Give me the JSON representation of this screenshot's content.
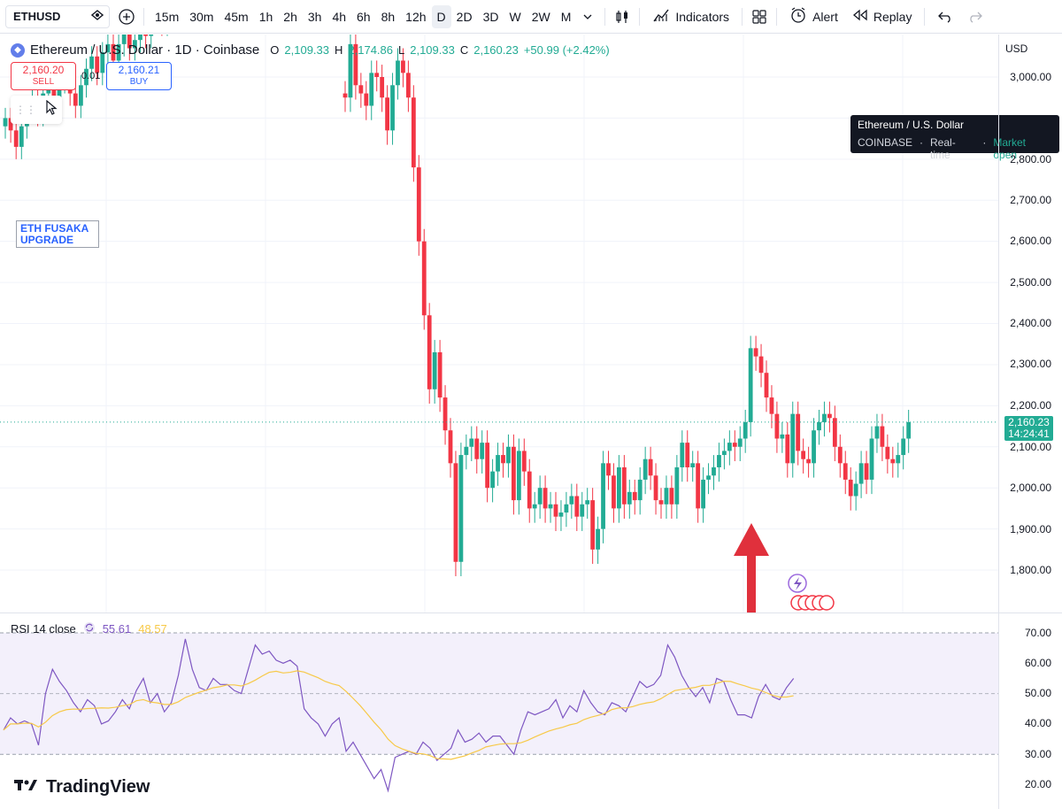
{
  "toolbar": {
    "symbol": "ETHUSD",
    "timeframes": [
      "15m",
      "30m",
      "45m",
      "1h",
      "2h",
      "3h",
      "4h",
      "6h",
      "8h",
      "12h",
      "D",
      "2D",
      "3D",
      "W",
      "2W",
      "M"
    ],
    "active_timeframe": "D",
    "indicators_label": "Indicators",
    "alert_label": "Alert",
    "replay_label": "Replay"
  },
  "legend": {
    "title": "Ethereum / U.S. Dollar · 1D · Coinbase",
    "o_label": "O",
    "o": "2,109.33",
    "h_label": "H",
    "h": "2,174.86",
    "l_label": "L",
    "l": "2,109.33",
    "c_label": "C",
    "c": "2,160.23",
    "change": "+50.99 (+2.42%)"
  },
  "trade": {
    "sell_price": "2,160.20",
    "sell_label": "SELL",
    "buy_price": "2,160.21",
    "buy_label": "BUY",
    "spread": "0.01"
  },
  "note": "ETH FUSAKA UPGRADE",
  "tooltip": {
    "title": "Ethereum / U.S. Dollar",
    "exchange": "COINBASE",
    "feed": "Real-time",
    "status": "Market open"
  },
  "price_axis": {
    "currency": "USD",
    "labels": [
      "3,000.00",
      "2,800.00",
      "2,700.00",
      "2,600.00",
      "2,500.00",
      "2,400.00",
      "2,300.00",
      "2,200.00",
      "2,100.00",
      "2,000.00",
      "1,900.00",
      "1,800.00"
    ],
    "current_price": "2,160.23",
    "countdown": "14:24:41"
  },
  "rsi": {
    "title": "RSI 14 close",
    "value": "55.61",
    "ma_value": "48.57",
    "axis_labels": [
      "70.00",
      "60.00",
      "50.00",
      "40.00",
      "30.00",
      "20.00"
    ]
  },
  "brand": "TradingView",
  "colors": {
    "up": "#22ab94",
    "down": "#f23645",
    "rsi": "#7e57c2",
    "rsi_ma": "#f7c948",
    "arrow": "#e0303c"
  },
  "chart_data": {
    "type": "candlestick",
    "symbol": "ETHUSD",
    "interval": "1D",
    "ylim": [
      1720,
      3100
    ],
    "candles_visible_approx": [
      {
        "o": 2160,
        "h": 2210,
        "l": 2130,
        "c": 2170
      },
      {
        "o": 2170,
        "h": 2230,
        "l": 2140,
        "c": 2145
      },
      {
        "o": 2145,
        "h": 2170,
        "l": 1930,
        "c": 1990
      },
      {
        "o": 1990,
        "h": 2050,
        "l": 1950,
        "c": 2020
      },
      {
        "o": 2020,
        "h": 2060,
        "l": 1880,
        "c": 1900
      },
      {
        "o": 1900,
        "h": 1960,
        "l": 1870,
        "c": 1930
      },
      {
        "o": 1930,
        "h": 2000,
        "l": 1920,
        "c": 1980
      },
      {
        "o": 1980,
        "h": 2010,
        "l": 1930,
        "c": 1940
      },
      {
        "o": 1940,
        "h": 2000,
        "l": 1920,
        "c": 1990
      },
      {
        "o": 1990,
        "h": 2020,
        "l": 1950,
        "c": 1960
      },
      {
        "o": 1960,
        "h": 2020,
        "l": 1940,
        "c": 2010
      },
      {
        "o": 2010,
        "h": 2070,
        "l": 1990,
        "c": 2040
      },
      {
        "o": 2040,
        "h": 2140,
        "l": 2030,
        "c": 2130
      },
      {
        "o": 2130,
        "h": 2180,
        "l": 2090,
        "c": 2120
      },
      {
        "o": 2120,
        "h": 2200,
        "l": 2110,
        "c": 2170
      },
      {
        "o": 2170,
        "h": 2230,
        "l": 2150,
        "c": 2180
      },
      {
        "o": 2180,
        "h": 2230,
        "l": 2160,
        "c": 2200
      },
      {
        "o": 2200,
        "h": 2280,
        "l": 2170,
        "c": 2250
      },
      {
        "o": 2250,
        "h": 2340,
        "l": 2220,
        "c": 2310
      },
      {
        "o": 2310,
        "h": 2380,
        "l": 2250,
        "c": 2270
      }
    ],
    "rsi_ylim": [
      15,
      75
    ],
    "rsi_bands": [
      30,
      50,
      70
    ],
    "current_rsi": 55.61,
    "current_rsi_ma": 48.57
  }
}
